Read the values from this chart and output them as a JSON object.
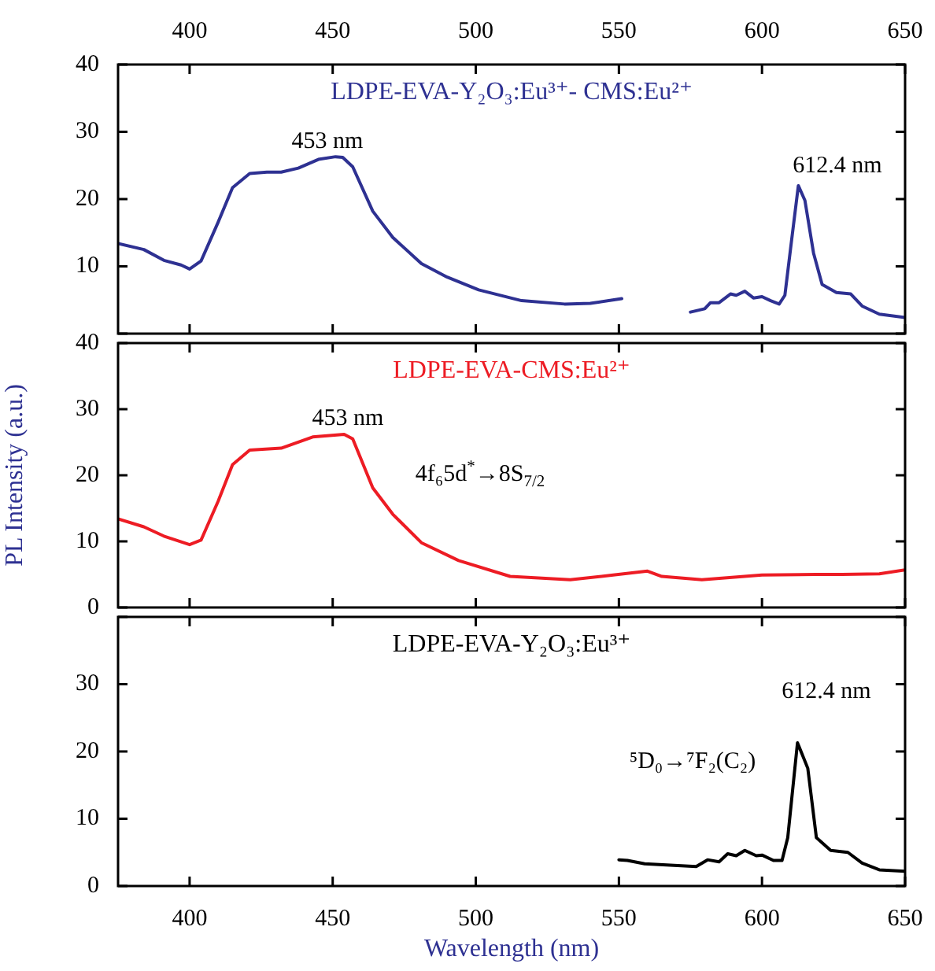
{
  "chart_data": [
    {
      "type": "line",
      "title": "LDPE-EVA-Y₂O₃:Eu³⁺- CMS:Eu²⁺",
      "xlim": [
        375,
        650
      ],
      "xticks": [
        400,
        450,
        500,
        550,
        600,
        650
      ],
      "ylim": [
        0,
        40
      ],
      "yticks": [
        {
          "value": 0,
          "label": null
        },
        10,
        20,
        30,
        40
      ],
      "x": [
        375,
        384,
        391,
        397,
        400,
        404,
        410,
        415,
        421,
        427,
        432,
        438,
        445,
        451,
        453.5,
        457,
        464,
        471,
        481,
        490,
        501,
        516,
        531,
        540,
        551,
        563,
        575,
        580,
        582,
        585,
        589,
        591,
        594,
        597,
        600,
        603,
        606,
        608,
        610,
        612.7,
        615,
        618,
        621,
        626,
        631,
        635,
        641,
        650
      ],
      "series": [
        {
          "color": "#2e3192",
          "values": [
            13.4,
            12.5,
            10.9,
            10.2,
            9.6,
            10.8,
            16.6,
            21.7,
            23.8,
            24.0,
            24.0,
            24.6,
            25.9,
            26.3,
            26.2,
            24.8,
            18.2,
            14.3,
            10.4,
            8.4,
            6.5,
            4.9,
            4.4,
            4.5,
            5.2,
            null,
            3.2,
            3.7,
            4.6,
            4.6,
            5.9,
            5.7,
            6.3,
            5.3,
            5.5,
            4.9,
            4.4,
            5.7,
            12.7,
            22.0,
            19.8,
            12.0,
            7.3,
            6.1,
            5.9,
            4.1,
            2.9,
            2.4
          ]
        }
      ],
      "annotations": [
        "453 nm",
        "612.4 nm"
      ]
    },
    {
      "type": "line",
      "title": "LDPE-EVA-CMS:Eu²⁺",
      "ylabel": "PL Intensity (a.u.)",
      "xlim": [
        375,
        650
      ],
      "xticks": [
        400,
        450,
        500,
        550,
        600,
        650
      ],
      "ylim": [
        0,
        40
      ],
      "yticks": [
        0,
        10,
        20,
        30,
        40
      ],
      "x": [
        375,
        384,
        391,
        400,
        404,
        410,
        415,
        421,
        432,
        443,
        454,
        457,
        464,
        471,
        481,
        494,
        512,
        533,
        548,
        560,
        565,
        579,
        600,
        619,
        628,
        641,
        650
      ],
      "series": [
        {
          "color": "#ed1c24",
          "values": [
            13.4,
            12.2,
            10.8,
            9.5,
            10.2,
            16.1,
            21.6,
            23.8,
            24.1,
            25.8,
            26.2,
            25.5,
            18.1,
            14.1,
            9.8,
            7.1,
            4.7,
            4.2,
            4.9,
            5.5,
            4.7,
            4.2,
            4.9,
            5.0,
            5.0,
            5.1,
            5.7
          ]
        }
      ],
      "annotations": [
        "453 nm",
        "4f₆5d$^{*}$→8S$_{7/2}$"
      ],
      "tick_labels": "y"
    },
    {
      "type": "line",
      "title": "LDPE-EVA-Y₂O₃:Eu³⁺",
      "xlabel": "Wavelength (nm)",
      "xlim": [
        375,
        650
      ],
      "xticks": [
        400,
        450,
        500,
        550,
        600,
        650
      ],
      "ylim": [
        0,
        40
      ],
      "yticks": [
        0,
        10,
        20,
        30,
        {
          "value": 40,
          "label": null
        }
      ],
      "x": [
        550,
        553,
        559,
        568,
        577,
        581,
        585,
        588,
        591,
        594,
        598,
        600,
        604,
        607,
        609,
        612.4,
        616,
        619,
        624,
        630,
        635,
        641,
        650
      ],
      "series": [
        {
          "color": "#000000",
          "values": [
            3.9,
            3.8,
            3.3,
            3.1,
            2.9,
            3.9,
            3.6,
            4.8,
            4.5,
            5.3,
            4.5,
            4.6,
            3.8,
            3.8,
            7.2,
            21.3,
            17.5,
            7.2,
            5.3,
            5.0,
            3.4,
            2.4,
            2.2
          ]
        }
      ],
      "annotations": [
        "612.4 nm",
        "⁵D₀→⁷F₂(C₂)"
      ]
    }
  ]
}
